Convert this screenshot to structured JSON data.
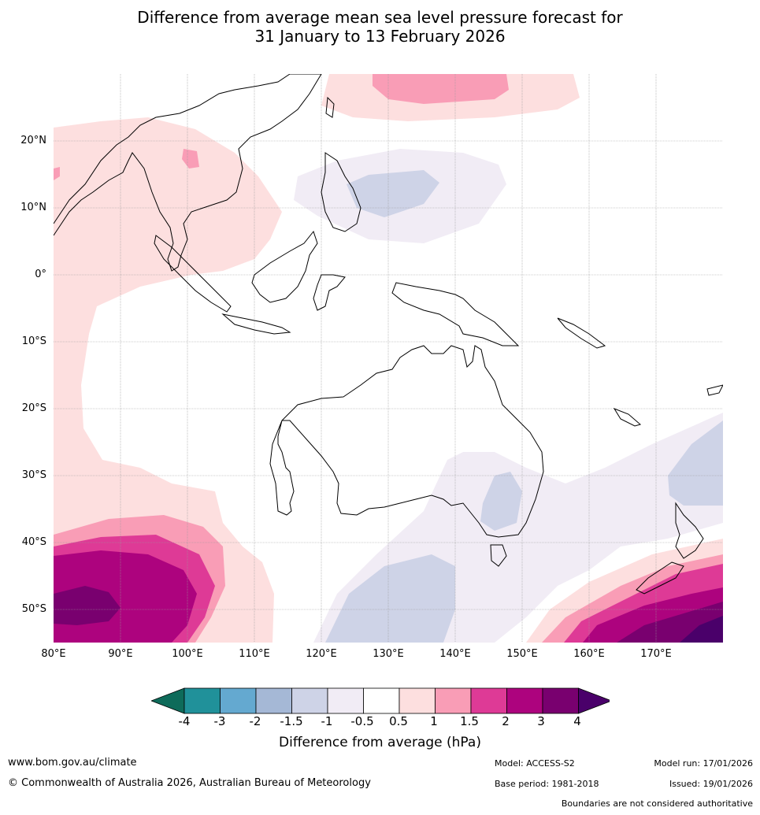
{
  "title": {
    "line1": "Difference from average mean sea level pressure forecast for",
    "line2": "31 January to 13 February 2026"
  },
  "map": {
    "lon_range": [
      80,
      180
    ],
    "lat_range": [
      -55,
      30
    ],
    "lat_labels": [
      "20°N",
      "10°N",
      "0°",
      "10°S",
      "20°S",
      "30°S",
      "40°S",
      "50°S"
    ],
    "lon_labels": [
      "80°E",
      "90°E",
      "100°E",
      "110°E",
      "120°E",
      "130°E",
      "140°E",
      "150°E",
      "160°E",
      "170°E"
    ]
  },
  "colorbar": {
    "title": "Difference from average (hPa)",
    "tick_labels": [
      "-4",
      "-3",
      "-2",
      "-1.5",
      "-1",
      "-0.5",
      "0.5",
      "1",
      "1.5",
      "2",
      "3",
      "4"
    ],
    "colors": [
      "#0e6b5a",
      "#20919a",
      "#64a9d0",
      "#a5b8d6",
      "#ced3e7",
      "#f1ecf5",
      "#ffffff",
      "#fddfdf",
      "#f99db6",
      "#de3a96",
      "#ad037e",
      "#79006f",
      "#4a006a"
    ]
  },
  "footer": {
    "website": "www.bom.gov.au/climate",
    "copyright": "© Commonwealth of Australia 2026, Australian Bureau of Meteorology",
    "model": "Model: ACCESS-S2",
    "base_period": "Base period: 1981-2018",
    "model_run": "Model run: 17/01/2026",
    "issued": "Issued: 19/01/2026",
    "disclaimer": "Boundaries are not considered authoritative"
  }
}
